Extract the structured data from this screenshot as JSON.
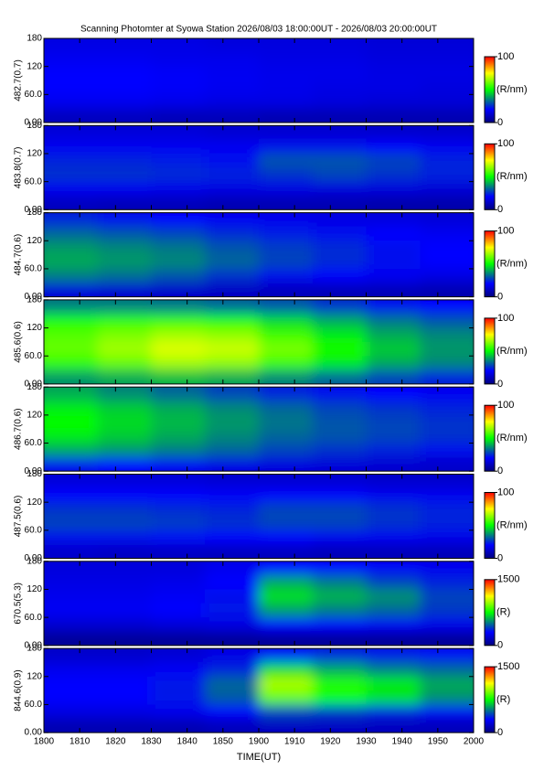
{
  "chart_data": {
    "type": "heatmap",
    "title": "Scanning Photomter at Syowa Station 2026/08/03 18:00:00UT - 2026/08/03 20:00:00UT",
    "x_label": "TIME(UT)",
    "xtick_labels": [
      "1800",
      "1810",
      "1820",
      "1830",
      "1840",
      "1850",
      "1900",
      "1910",
      "1920",
      "1930",
      "1940",
      "1950",
      "2000"
    ],
    "ylim": [
      0,
      180
    ],
    "yticks": [
      {
        "value": 0,
        "label": "0.00"
      },
      {
        "value": 60,
        "label": "60.0"
      },
      120,
      180
    ],
    "panels": [
      {
        "y_label": "482.7(0.7)",
        "clim": [
          0,
          100
        ],
        "cticks": [
          0,
          100
        ],
        "colorbar_label": "(R/nm)",
        "z": [
          [
            16,
            16,
            16,
            15,
            15,
            15,
            14,
            14
          ],
          [
            18,
            18,
            17,
            17,
            16,
            16,
            15,
            15
          ],
          [
            20,
            20,
            19,
            18,
            17,
            17,
            16,
            16
          ],
          [
            20,
            20,
            19,
            18,
            17,
            16,
            16,
            15
          ],
          [
            18,
            18,
            17,
            16,
            16,
            15,
            14,
            14
          ],
          [
            10,
            10,
            9,
            9,
            8,
            8,
            8,
            8
          ]
        ]
      },
      {
        "y_label": "483.8(0.7)",
        "clim": [
          0,
          100
        ],
        "cticks": [
          0,
          100
        ],
        "colorbar_label": "(R/nm)",
        "z": [
          [
            14,
            14,
            14,
            13,
            13,
            13,
            12,
            12
          ],
          [
            18,
            18,
            18,
            18,
            22,
            22,
            20,
            18
          ],
          [
            24,
            24,
            23,
            22,
            30,
            30,
            28,
            24
          ],
          [
            26,
            26,
            25,
            24,
            26,
            28,
            26,
            24
          ],
          [
            18,
            18,
            17,
            16,
            16,
            15,
            15,
            14
          ],
          [
            10,
            9,
            9,
            8,
            8,
            8,
            7,
            7
          ]
        ]
      },
      {
        "y_label": "484.7(0.6)",
        "clim": [
          0,
          100
        ],
        "cticks": [
          0,
          100
        ],
        "colorbar_label": "(R/nm)",
        "z": [
          [
            24,
            22,
            20,
            18,
            17,
            16,
            15,
            14
          ],
          [
            32,
            30,
            28,
            25,
            23,
            22,
            20,
            18
          ],
          [
            38,
            36,
            34,
            30,
            27,
            25,
            22,
            20
          ],
          [
            40,
            38,
            36,
            32,
            28,
            25,
            22,
            20
          ],
          [
            35,
            33,
            30,
            26,
            22,
            20,
            18,
            16
          ],
          [
            14,
            13,
            12,
            11,
            10,
            9,
            9,
            8
          ]
        ]
      },
      {
        "y_label": "485.6(0.6)",
        "clim": [
          0,
          100
        ],
        "cticks": [
          0,
          100
        ],
        "colorbar_label": "(R/nm)",
        "z": [
          [
            35,
            35,
            34,
            32,
            30,
            26,
            22,
            20
          ],
          [
            52,
            54,
            55,
            52,
            46,
            40,
            34,
            30
          ],
          [
            58,
            62,
            66,
            64,
            56,
            48,
            40,
            36
          ],
          [
            60,
            66,
            72,
            70,
            62,
            52,
            44,
            38
          ],
          [
            55,
            60,
            66,
            64,
            56,
            48,
            40,
            36
          ],
          [
            38,
            40,
            42,
            40,
            36,
            32,
            28,
            24
          ]
        ]
      },
      {
        "y_label": "486.7(0.6)",
        "clim": [
          0,
          100
        ],
        "cticks": [
          0,
          100
        ],
        "colorbar_label": "(R/nm)",
        "z": [
          [
            40,
            36,
            32,
            28,
            24,
            22,
            20,
            18
          ],
          [
            48,
            44,
            40,
            36,
            32,
            28,
            26,
            24
          ],
          [
            50,
            46,
            42,
            38,
            34,
            30,
            28,
            26
          ],
          [
            48,
            44,
            40,
            36,
            32,
            30,
            28,
            26
          ],
          [
            40,
            38,
            35,
            32,
            28,
            26,
            24,
            22
          ],
          [
            22,
            20,
            18,
            16,
            15,
            14,
            13,
            12
          ]
        ]
      },
      {
        "y_label": "487.5(0.6)",
        "clim": [
          0,
          100
        ],
        "cticks": [
          0,
          100
        ],
        "colorbar_label": "(R/nm)",
        "z": [
          [
            14,
            14,
            14,
            13,
            13,
            13,
            12,
            12
          ],
          [
            20,
            20,
            20,
            19,
            20,
            20,
            18,
            18
          ],
          [
            26,
            26,
            25,
            24,
            28,
            28,
            26,
            24
          ],
          [
            28,
            28,
            27,
            26,
            28,
            28,
            26,
            24
          ],
          [
            22,
            22,
            21,
            20,
            20,
            18,
            18,
            17
          ],
          [
            12,
            11,
            11,
            10,
            10,
            9,
            9,
            9
          ]
        ]
      },
      {
        "y_label": "670.5(5.3)",
        "clim": [
          0,
          1500
        ],
        "cticks": [
          0,
          1500
        ],
        "colorbar_label": "(R)",
        "z": [
          [
            220,
            220,
            220,
            260,
            300,
            300,
            280,
            260
          ],
          [
            240,
            240,
            250,
            300,
            600,
            520,
            420,
            360
          ],
          [
            260,
            260,
            280,
            330,
            700,
            620,
            560,
            420
          ],
          [
            280,
            280,
            300,
            340,
            580,
            520,
            480,
            400
          ],
          [
            200,
            200,
            220,
            240,
            300,
            300,
            280,
            260
          ],
          [
            60,
            60,
            60,
            60,
            60,
            60,
            60,
            60
          ]
        ]
      },
      {
        "y_label": "844.6(0.9)",
        "clim": [
          0,
          1500
        ],
        "cticks": [
          0,
          1500
        ],
        "colorbar_label": "(R)",
        "z": [
          [
            180,
            180,
            200,
            240,
            320,
            360,
            340,
            320
          ],
          [
            260,
            260,
            280,
            360,
            700,
            600,
            520,
            480
          ],
          [
            300,
            300,
            340,
            480,
            1000,
            800,
            720,
            600
          ],
          [
            300,
            300,
            340,
            460,
            900,
            760,
            700,
            560
          ],
          [
            240,
            240,
            260,
            300,
            420,
            400,
            360,
            320
          ],
          [
            120,
            120,
            120,
            140,
            160,
            160,
            150,
            140
          ]
        ]
      }
    ]
  }
}
